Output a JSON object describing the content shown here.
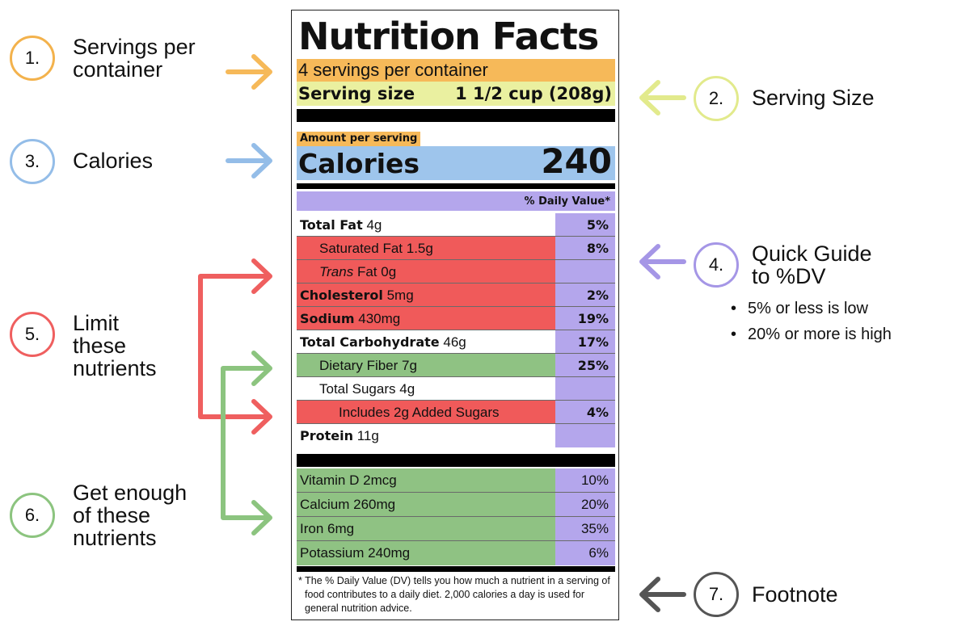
{
  "label": {
    "title": "Nutrition Facts",
    "servings_per_container": "4 servings per container",
    "serving_size_label": "Serving size",
    "serving_size_value": "1 1/2 cup (208g)",
    "amount_per_serving": "Amount per serving",
    "calories_label": "Calories",
    "calories_value": "240",
    "daily_value_header": "% Daily Value*",
    "nutrients": [
      {
        "bold": "Total Fat",
        "name": "",
        "amount": "4g",
        "dv": "5%"
      },
      {
        "bold": "",
        "name": "Saturated Fat",
        "amount": "1.5g",
        "dv": "8%"
      },
      {
        "bold": "",
        "italic": "Trans",
        "name": "Fat",
        "amount": "0g",
        "dv": ""
      },
      {
        "bold": "Cholesterol",
        "name": "",
        "amount": "5mg",
        "dv": "2%"
      },
      {
        "bold": "Sodium",
        "name": "",
        "amount": "430mg",
        "dv": "19%"
      },
      {
        "bold": "Total Carbohydrate",
        "name": "",
        "amount": "46g",
        "dv": "17%"
      },
      {
        "bold": "",
        "name": "Dietary Fiber",
        "amount": "7g",
        "dv": "25%"
      },
      {
        "bold": "",
        "name": "Total Sugars",
        "amount": "4g",
        "dv": ""
      },
      {
        "bold": "",
        "name": "Includes 2g Added Sugars",
        "amount": "",
        "dv": "4%"
      },
      {
        "bold": "Protein",
        "name": "",
        "amount": "11g",
        "dv": ""
      }
    ],
    "vitamins": [
      {
        "name": "Vitamin D",
        "amount": "2mcg",
        "dv": "10%"
      },
      {
        "name": "Calcium",
        "amount": "260mg",
        "dv": "20%"
      },
      {
        "name": "Iron",
        "amount": "6mg",
        "dv": "35%"
      },
      {
        "name": "Potassium",
        "amount": "240mg",
        "dv": "6%"
      }
    ],
    "footnote": "* The % Daily Value (DV) tells you how much a nutrient in a serving of food contributes to a daily diet. 2,000 calories a day is used for general nutrition advice."
  },
  "callouts": [
    {
      "number": "1.",
      "line1": "Servings per",
      "line2": "container",
      "color": "#f3b24c"
    },
    {
      "number": "2.",
      "line1": "Serving Size",
      "color": "#e2ea8c"
    },
    {
      "number": "3.",
      "line1": "Calories",
      "color": "#94bde8"
    },
    {
      "number": "4.",
      "line1": "Quick Guide",
      "line2": "to %DV",
      "color": "#a596e6",
      "bullets": [
        "5% or less is low",
        "20% or more is high"
      ]
    },
    {
      "number": "5.",
      "line1": "Limit",
      "line2": "these",
      "line3": "nutrients",
      "color": "#ef5f5f"
    },
    {
      "number": "6.",
      "line1": "Get enough",
      "line2": "of these",
      "line3": "nutrients",
      "color": "#8cc47f"
    },
    {
      "number": "7.",
      "line1": "Footnote",
      "color": "#555555"
    }
  ],
  "colors": {
    "servings": "#f6b959",
    "serving_size": "#eaf0a0",
    "calories": "#9ec5ec",
    "daily_value": "#b4a6ec",
    "limit": "#f05a5a",
    "get_enough": "#8fc283"
  }
}
